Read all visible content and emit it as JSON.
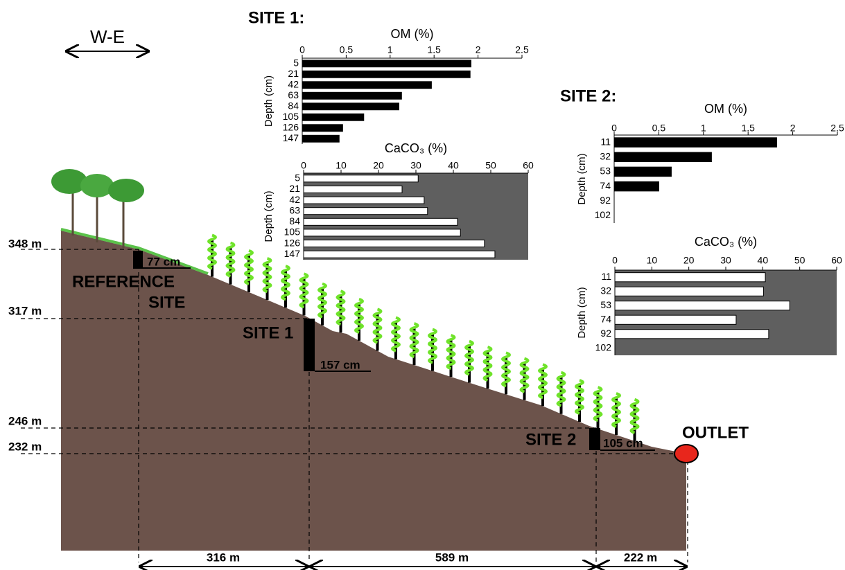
{
  "diagram": {
    "site1_heading": "SITE 1:",
    "site2_heading": "SITE 2:",
    "direction": "W-E",
    "elevations": [
      "348 m",
      "317 m",
      "246 m",
      "232 m"
    ],
    "reference_site": [
      "REFERENCE",
      "SITE"
    ],
    "reference_depth": "77 cm",
    "site1_label": "SITE 1",
    "site1_depth": "157 cm",
    "site2_label": "SITE 2",
    "site2_depth": "105 cm",
    "outlet": "OUTLET",
    "distances": [
      "316 m",
      "589 m",
      "222 m"
    ]
  },
  "chart_data": [
    {
      "type": "bar",
      "orientation": "horizontal",
      "title": "OM (%)",
      "y_label": "Depth (cm)",
      "categories": [
        "5",
        "21",
        "42",
        "63",
        "84",
        "105",
        "126",
        "147"
      ],
      "values": [
        1.92,
        1.91,
        1.47,
        1.13,
        1.1,
        0.7,
        0.46,
        0.42
      ],
      "color": "#000000",
      "xlim": [
        0,
        2.5
      ],
      "xticks": [
        0,
        0.5,
        1,
        1.5,
        2,
        2.5
      ]
    },
    {
      "type": "bar",
      "orientation": "horizontal",
      "title": "CaCO₃ (%)",
      "y_label": "Depth (cm)",
      "categories": [
        "5",
        "21",
        "42",
        "63",
        "84",
        "105",
        "126",
        "147"
      ],
      "values": [
        30.6,
        26.3,
        32.2,
        33.1,
        41.1,
        41.9,
        48.3,
        51.1
      ],
      "color": "#ffffff",
      "background": "#5f5f5f",
      "xlim": [
        0,
        60
      ],
      "xticks": [
        0,
        10,
        20,
        30,
        40,
        50,
        60
      ]
    },
    {
      "type": "bar",
      "orientation": "horizontal",
      "title": "OM (%)",
      "y_label": "Depth (cm)",
      "categories": [
        "11",
        "32",
        "53",
        "74",
        "92",
        "102"
      ],
      "values": [
        1.82,
        1.09,
        0.64,
        0.5,
        null,
        null
      ],
      "color": "#000000",
      "xlim": [
        0,
        2.5
      ],
      "xticks": [
        0,
        0.5,
        1,
        1.5,
        2,
        2.5
      ]
    },
    {
      "type": "bar",
      "orientation": "horizontal",
      "title": "CaCO₃ (%)",
      "y_label": "Depth (cm)",
      "categories": [
        "11",
        "32",
        "53",
        "74",
        "92",
        "102"
      ],
      "values": [
        40.7,
        40.2,
        47.3,
        32.8,
        41.6,
        null
      ],
      "color": "#ffffff",
      "background": "#5f5f5f",
      "xlim": [
        0,
        60
      ],
      "xticks": [
        0,
        10,
        20,
        30,
        40,
        50,
        60
      ]
    }
  ]
}
